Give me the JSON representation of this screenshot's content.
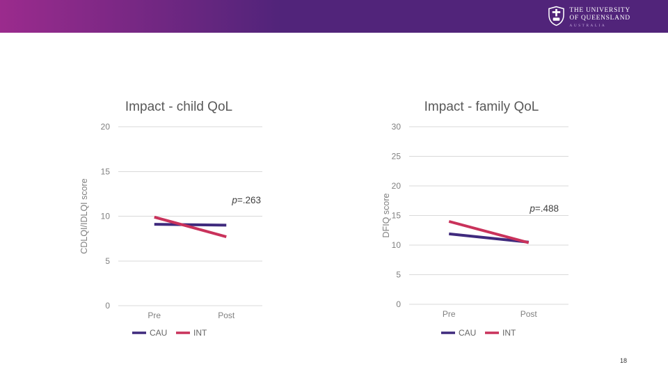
{
  "slide": {
    "page_number": "18"
  },
  "header": {
    "logo": {
      "line1": "THE UNIVERSITY",
      "line2": "OF QUEENSLAND",
      "line3": "AUSTRALIA"
    },
    "colors": {
      "gradient_start": "#9B2B8D",
      "gradient_end": "#51247A"
    }
  },
  "chart_data": [
    {
      "type": "line",
      "title": "Impact - child QoL",
      "ylabel": "CDLQI/IDLQI score",
      "xlabel": "",
      "categories": [
        "Pre",
        "Post"
      ],
      "ylim": [
        0,
        20
      ],
      "yticks": [
        0,
        5,
        10,
        15,
        20
      ],
      "grid": true,
      "annotation": "p=.263",
      "legend_position": "bottom",
      "series": [
        {
          "name": "CAU",
          "color": "#3F2A7D",
          "values": [
            9.1,
            9.0
          ]
        },
        {
          "name": "INT",
          "color": "#C9325B",
          "values": [
            9.9,
            7.7
          ]
        }
      ]
    },
    {
      "type": "line",
      "title": "Impact - family QoL",
      "ylabel": "DFIQ score",
      "xlabel": "",
      "categories": [
        "Pre",
        "Post"
      ],
      "ylim": [
        0,
        30
      ],
      "yticks": [
        0,
        5,
        10,
        15,
        20,
        25,
        30
      ],
      "grid": true,
      "annotation": "p=.488",
      "legend_position": "bottom",
      "series": [
        {
          "name": "CAU",
          "color": "#3F2A7D",
          "values": [
            11.9,
            10.5
          ]
        },
        {
          "name": "INT",
          "color": "#C9325B",
          "values": [
            14.0,
            10.4
          ]
        }
      ]
    }
  ]
}
